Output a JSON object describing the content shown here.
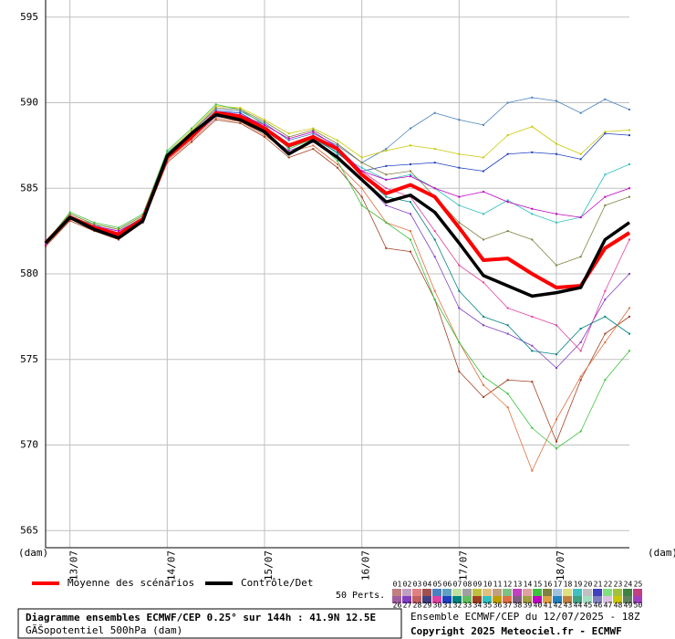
{
  "chart_data": {
    "type": "line",
    "title": "Diagramme ensembles ECMWF/CEP 0.25° sur 144h : 41.9N 12.5E",
    "subtitle": "GÃŠopotentiel 500hPa (dam)",
    "run_label": "Ensemble ECMWF/CEP du 12/07/2025 - 18Z",
    "copyright": "Copyright 2025 Meteociel.fr - ECMWF",
    "y_unit_left": "(dam)",
    "y_unit_right": "(dam)",
    "members_label": "50 Perts.",
    "x": [
      0,
      6,
      12,
      18,
      24,
      30,
      36,
      42,
      48,
      54,
      60,
      66,
      72,
      78,
      84,
      90,
      96,
      102,
      108,
      114,
      120,
      126,
      132,
      138,
      144
    ],
    "xlim": [
      0,
      144
    ],
    "xticks": [
      {
        "value": 6,
        "label": "13/07"
      },
      {
        "value": 30,
        "label": "14/07"
      },
      {
        "value": 54,
        "label": "15/07"
      },
      {
        "value": 78,
        "label": "16/07"
      },
      {
        "value": 102,
        "label": "17/07"
      },
      {
        "value": 126,
        "label": "18/07"
      }
    ],
    "ylim": [
      564,
      596
    ],
    "yticks": [
      565,
      570,
      575,
      580,
      585,
      590,
      595
    ],
    "grid": true,
    "series": [
      {
        "name": "Moyenne des scénarios",
        "color": "#ff0000",
        "width": 4,
        "values": [
          581.8,
          583.3,
          582.7,
          582.3,
          583.2,
          586.8,
          588.0,
          589.4,
          589.2,
          588.5,
          587.5,
          588.0,
          587.3,
          585.8,
          584.7,
          585.2,
          584.5,
          582.7,
          580.8,
          580.9,
          580.0,
          579.2,
          579.3,
          581.5,
          582.4
        ]
      },
      {
        "name": "Contrôle/Det",
        "color": "#000000",
        "width": 3.5,
        "values": [
          581.8,
          583.3,
          582.6,
          582.1,
          583.1,
          586.9,
          588.2,
          589.3,
          589.0,
          588.3,
          587.0,
          587.8,
          586.8,
          585.5,
          584.2,
          584.6,
          583.6,
          581.8,
          579.9,
          579.3,
          578.7,
          578.9,
          579.2,
          582.0,
          583.0
        ]
      }
    ],
    "perturbations": [
      {
        "color": "#4a80c0",
        "values": [
          581.8,
          583.4,
          582.8,
          582.5,
          583.3,
          587.0,
          588.3,
          589.6,
          589.5,
          588.8,
          587.8,
          588.2,
          587.5,
          586.5,
          587.3,
          588.5,
          589.4,
          589.0,
          588.7,
          590.0,
          590.3,
          590.1,
          589.4,
          590.2,
          589.6
        ]
      },
      {
        "color": "#c8c800",
        "values": [
          581.9,
          583.5,
          582.9,
          582.6,
          583.4,
          587.1,
          588.4,
          589.8,
          589.7,
          589.0,
          588.2,
          588.5,
          587.8,
          586.8,
          587.2,
          587.5,
          587.3,
          587.0,
          586.8,
          588.1,
          588.6,
          587.6,
          587.0,
          588.3,
          588.4
        ]
      },
      {
        "color": "#2040c0",
        "values": [
          581.7,
          583.2,
          582.7,
          582.4,
          583.2,
          586.9,
          588.1,
          589.5,
          589.4,
          588.6,
          587.6,
          588.0,
          587.2,
          586.0,
          586.3,
          586.4,
          586.5,
          586.2,
          586.0,
          587.0,
          587.1,
          587.0,
          586.7,
          588.2,
          588.1
        ]
      },
      {
        "color": "#30c0c0",
        "values": [
          581.8,
          583.3,
          582.9,
          582.3,
          583.3,
          587.1,
          588.2,
          589.3,
          589.1,
          588.4,
          587.4,
          588.1,
          587.0,
          586.2,
          585.5,
          585.8,
          585.0,
          584.0,
          583.5,
          584.3,
          583.5,
          583.0,
          583.3,
          585.8,
          586.4
        ]
      },
      {
        "color": "#a04020",
        "values": [
          581.6,
          583.1,
          582.5,
          582.0,
          583.0,
          586.5,
          587.7,
          589.0,
          588.8,
          588.0,
          586.8,
          587.3,
          586.2,
          584.5,
          581.5,
          581.3,
          578.5,
          574.3,
          572.8,
          573.8,
          573.7,
          570.2,
          573.8,
          576.5,
          577.5
        ]
      },
      {
        "color": "#e07040",
        "values": [
          581.7,
          583.2,
          582.6,
          582.2,
          583.1,
          586.6,
          587.8,
          589.1,
          588.9,
          588.1,
          587.1,
          587.5,
          586.4,
          585.0,
          583.0,
          582.5,
          579.0,
          576.0,
          573.5,
          572.2,
          568.5,
          571.5,
          574.0,
          576.0,
          578.0
        ]
      },
      {
        "color": "#40c040",
        "values": [
          581.8,
          583.6,
          583.0,
          582.7,
          583.5,
          587.2,
          588.5,
          589.9,
          589.6,
          588.7,
          587.3,
          587.9,
          586.6,
          584.0,
          583.0,
          582.0,
          578.5,
          576.0,
          574.0,
          573.0,
          571.0,
          569.8,
          570.8,
          573.8,
          575.5
        ]
      },
      {
        "color": "#8040c0",
        "values": [
          581.7,
          583.3,
          582.6,
          582.1,
          583.0,
          586.7,
          587.9,
          589.2,
          589.0,
          588.2,
          587.2,
          587.7,
          586.9,
          585.5,
          584.0,
          583.5,
          581.0,
          578.0,
          577.0,
          576.5,
          575.8,
          574.5,
          576.0,
          578.5,
          580.0
        ]
      },
      {
        "color": "#e040a0",
        "values": [
          581.9,
          583.4,
          582.8,
          582.4,
          583.3,
          586.9,
          588.1,
          589.4,
          589.3,
          588.6,
          587.6,
          588.1,
          587.3,
          586.0,
          585.0,
          584.5,
          582.5,
          580.5,
          579.5,
          578.0,
          577.5,
          577.0,
          575.5,
          579.0,
          582.0
        ]
      },
      {
        "color": "#008080",
        "values": [
          581.8,
          583.2,
          582.7,
          582.3,
          583.2,
          586.8,
          588.0,
          589.3,
          589.1,
          588.4,
          587.4,
          587.9,
          587.1,
          585.8,
          584.5,
          584.2,
          582.0,
          579.0,
          577.5,
          577.0,
          575.5,
          575.3,
          576.8,
          577.5,
          576.5
        ]
      },
      {
        "color": "#808040",
        "values": [
          581.8,
          583.5,
          582.9,
          582.6,
          583.4,
          587.0,
          588.3,
          589.7,
          589.6,
          588.9,
          588.0,
          588.4,
          587.6,
          586.5,
          585.8,
          586.0,
          584.5,
          583.0,
          582.0,
          582.5,
          582.0,
          580.5,
          581.0,
          584.0,
          584.5
        ]
      },
      {
        "color": "#c000c0",
        "values": [
          581.7,
          583.3,
          582.8,
          582.5,
          583.2,
          586.9,
          588.2,
          589.5,
          589.3,
          588.7,
          587.9,
          588.3,
          587.4,
          586.0,
          585.5,
          585.7,
          585.0,
          584.5,
          584.8,
          584.2,
          583.8,
          583.5,
          583.3,
          584.5,
          585.0
        ]
      }
    ],
    "members": [
      {
        "label": "01",
        "color": "#c08080"
      },
      {
        "label": "02",
        "color": "#c0a0c0"
      },
      {
        "label": "03",
        "color": "#e08080"
      },
      {
        "label": "04",
        "color": "#a05050"
      },
      {
        "label": "05",
        "color": "#4a80c0"
      },
      {
        "label": "06",
        "color": "#60a0c0"
      },
      {
        "label": "07",
        "color": "#c0e0a0"
      },
      {
        "label": "08",
        "color": "#a0a0a0"
      },
      {
        "label": "09",
        "color": "#c0c040"
      },
      {
        "label": "10",
        "color": "#e0c080"
      },
      {
        "label": "11",
        "color": "#c0a080"
      },
      {
        "label": "12",
        "color": "#80c080"
      },
      {
        "label": "13",
        "color": "#c040c0"
      },
      {
        "label": "14",
        "color": "#e0a0a0"
      },
      {
        "label": "15",
        "color": "#40c040"
      },
      {
        "label": "16",
        "color": "#808040"
      },
      {
        "label": "17",
        "color": "#a0c0e0"
      },
      {
        "label": "18",
        "color": "#e0e080"
      },
      {
        "label": "19",
        "color": "#40c0c0"
      },
      {
        "label": "20",
        "color": "#c0c0c0"
      },
      {
        "label": "21",
        "color": "#4040c0"
      },
      {
        "label": "22",
        "color": "#80e080"
      },
      {
        "label": "23",
        "color": "#a0c040"
      },
      {
        "label": "24",
        "color": "#408040"
      },
      {
        "label": "25",
        "color": "#c04080"
      },
      {
        "label": "26",
        "color": "#a060a0"
      },
      {
        "label": "27",
        "color": "#8040c0"
      },
      {
        "label": "28",
        "color": "#c06060"
      },
      {
        "label": "29",
        "color": "#404080"
      },
      {
        "label": "30",
        "color": "#e040a0"
      },
      {
        "label": "31",
        "color": "#2040c0"
      },
      {
        "label": "32",
        "color": "#008080"
      },
      {
        "label": "33",
        "color": "#60c060"
      },
      {
        "label": "34",
        "color": "#a04020"
      },
      {
        "label": "35",
        "color": "#30c0c0"
      },
      {
        "label": "36",
        "color": "#c0a000"
      },
      {
        "label": "37",
        "color": "#e07040"
      },
      {
        "label": "38",
        "color": "#806080"
      },
      {
        "label": "39",
        "color": "#a0a040"
      },
      {
        "label": "40",
        "color": "#c000c0"
      },
      {
        "label": "41",
        "color": "#e0a040"
      },
      {
        "label": "42",
        "color": "#2080c0"
      },
      {
        "label": "43",
        "color": "#c08040"
      },
      {
        "label": "44",
        "color": "#40a080"
      },
      {
        "label": "45",
        "color": "#a0e0c0"
      },
      {
        "label": "46",
        "color": "#8080c0"
      },
      {
        "label": "47",
        "color": "#e0c0e0"
      },
      {
        "label": "48",
        "color": "#c8c800"
      },
      {
        "label": "49",
        "color": "#608060"
      },
      {
        "label": "50",
        "color": "#a040c0"
      }
    ]
  }
}
